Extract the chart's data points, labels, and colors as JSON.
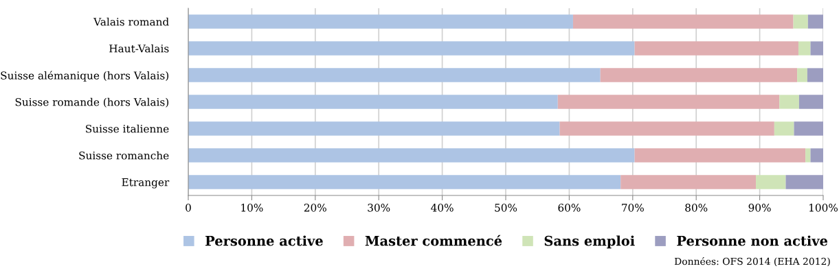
{
  "chart_data": {
    "type": "bar",
    "orientation": "horizontal",
    "stacked": true,
    "categories": [
      "Valais romand",
      "Haut-Valais",
      "Suisse alémanique (hors Valais)",
      "Suisse romande (hors Valais)",
      "Suisse italienne",
      "Suisse romanche",
      "Etranger"
    ],
    "series": [
      {
        "name": "Personne active",
        "color": "#adc4e4",
        "values": [
          60.6,
          70.3,
          64.9,
          58.2,
          58.5,
          70.3,
          68.1
        ]
      },
      {
        "name": "Master commencé",
        "color": "#e0aeb1",
        "values": [
          34.7,
          25.8,
          31.0,
          34.9,
          33.8,
          26.9,
          21.3
        ]
      },
      {
        "name": "Sans emploi",
        "color": "#cfe4b7",
        "values": [
          2.3,
          1.9,
          1.6,
          3.1,
          3.1,
          0.8,
          4.7
        ]
      },
      {
        "name": "Personne non active",
        "color": "#9c9dc0",
        "values": [
          2.4,
          2.0,
          2.5,
          3.8,
          4.6,
          2.0,
          5.9
        ]
      }
    ],
    "xlim": [
      0,
      100
    ],
    "xticks": [
      0,
      {
        "value": 10,
        "label": "10%"
      },
      {
        "value": 20,
        "label": "20%"
      },
      {
        "value": 30,
        "label": "30%"
      },
      {
        "value": 40,
        "label": "40%"
      },
      {
        "value": 50,
        "label": "50%"
      },
      {
        "value": 60,
        "label": "60%"
      },
      {
        "value": 70,
        "label": "70%"
      },
      {
        "value": 80,
        "label": "80%"
      },
      {
        "value": 90,
        "label": "90%"
      },
      {
        "value": 100,
        "label": "100%"
      }
    ],
    "grid": "x",
    "legend": "bottom",
    "annotations": [
      "Données: OFS 2014 (EHA 2012)"
    ]
  }
}
